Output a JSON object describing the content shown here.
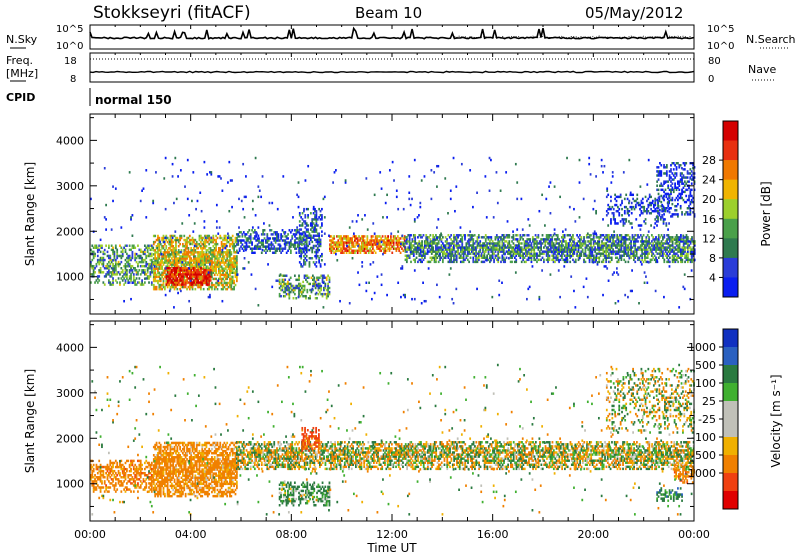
{
  "header": {
    "station": "Stokkseyri (fitACF)",
    "beam": "Beam 10",
    "date": "05/May/2012"
  },
  "top_panels": {
    "nsky_label": "N.Sky",
    "nsearch_label": "N.Search",
    "noise_ticks": [
      "10^5",
      "10^0"
    ],
    "freq_label": "Freq.",
    "freq_unit": "[MHz]",
    "freq_ticks": [
      "18",
      "8"
    ],
    "nave_label": "Nave",
    "nave_ticks": [
      "80",
      "0"
    ],
    "cpid_label": "CPID",
    "cpid_value": "normal 150"
  },
  "colors": {
    "power": [
      "#0a1ef0",
      "#2a3cd8",
      "#2f7a4f",
      "#4aa04a",
      "#9ccf2c",
      "#f0b400",
      "#f07800",
      "#e83010",
      "#d40000"
    ],
    "velocity": [
      "#e00000",
      "#f04010",
      "#f08000",
      "#f0b000",
      "#c0c0b8",
      "#c0c0b8",
      "#40b030",
      "#2a7a40",
      "#2a60c0",
      "#1030c0"
    ]
  },
  "chart_data": [
    {
      "type": "heatmap",
      "panel": "power",
      "ylabel": "Slant Range [km]",
      "x_ticks": [
        "00:00",
        "04:00",
        "08:00",
        "12:00",
        "16:00",
        "20:00",
        "00:00"
      ],
      "y_ticks": [
        1000,
        2000,
        3000,
        4000
      ],
      "ylim": [
        180,
        4580
      ],
      "xlim_hours": [
        0,
        24
      ],
      "colorbar_label": "Power [dB]",
      "colorbar_ticks": [
        4,
        8,
        12,
        16,
        20,
        24,
        28
      ],
      "regions": [
        {
          "t0": 0.0,
          "t1": 2.5,
          "r0": 800,
          "r1": 1700,
          "intensity": 0.35,
          "density": 0.55
        },
        {
          "t0": 2.5,
          "t1": 5.8,
          "r0": 700,
          "r1": 1900,
          "intensity": 0.55,
          "density": 0.85
        },
        {
          "t0": 3.0,
          "t1": 4.8,
          "r0": 800,
          "r1": 1200,
          "intensity": 0.9,
          "density": 0.9
        },
        {
          "t0": 5.8,
          "t1": 8.5,
          "r0": 1500,
          "r1": 2000,
          "intensity": 0.2,
          "density": 0.6
        },
        {
          "t0": 7.5,
          "t1": 9.5,
          "r0": 500,
          "r1": 1000,
          "intensity": 0.35,
          "density": 0.55
        },
        {
          "t0": 8.3,
          "t1": 9.2,
          "r0": 1200,
          "r1": 2500,
          "intensity": 0.2,
          "density": 0.5
        },
        {
          "t0": 9.5,
          "t1": 12.5,
          "r0": 1500,
          "r1": 1900,
          "intensity": 0.7,
          "density": 0.85
        },
        {
          "t0": 12.5,
          "t1": 24.0,
          "r0": 1300,
          "r1": 1900,
          "intensity": 0.3,
          "density": 0.8
        },
        {
          "t0": 20.5,
          "t1": 23.0,
          "r0": 2100,
          "r1": 2800,
          "intensity": 0.1,
          "density": 0.35
        },
        {
          "t0": 22.5,
          "t1": 24.0,
          "r0": 2300,
          "r1": 3500,
          "intensity": 0.1,
          "density": 0.4
        },
        {
          "t0": 0.0,
          "t1": 24.0,
          "r0": 300,
          "r1": 3600,
          "intensity": 0.1,
          "density": 0.02
        }
      ]
    },
    {
      "type": "heatmap",
      "panel": "velocity",
      "ylabel": "Slant Range [km]",
      "xlabel": "Time UT",
      "x_ticks": [
        "00:00",
        "04:00",
        "08:00",
        "12:00",
        "16:00",
        "20:00",
        "00:00"
      ],
      "y_ticks": [
        1000,
        2000,
        3000,
        4000
      ],
      "ylim": [
        180,
        4580
      ],
      "xlim_hours": [
        0,
        24
      ],
      "colorbar_label": "Velocity [m s⁻¹]",
      "colorbar_ticks": [
        "1000",
        "500",
        "100",
        "25",
        "-25",
        "-100",
        "-500",
        "-1000"
      ],
      "regions": [
        {
          "t0": 0.0,
          "t1": 2.5,
          "r0": 800,
          "r1": 1500,
          "vel": -300,
          "density": 0.55
        },
        {
          "t0": 2.5,
          "t1": 5.8,
          "r0": 700,
          "r1": 1900,
          "vel": -250,
          "density": 0.85
        },
        {
          "t0": 5.8,
          "t1": 24.0,
          "r0": 1300,
          "r1": 1900,
          "vel": 0,
          "density": 0.75
        },
        {
          "t0": 7.5,
          "t1": 9.5,
          "r0": 500,
          "r1": 1000,
          "vel": 200,
          "density": 0.55
        },
        {
          "t0": 8.4,
          "t1": 9.1,
          "r0": 1700,
          "r1": 2200,
          "vel": -600,
          "density": 0.6
        },
        {
          "t0": 20.5,
          "t1": 24.0,
          "r0": 2100,
          "r1": 3500,
          "vel": 0,
          "density": 0.3
        },
        {
          "t0": 22.5,
          "t1": 23.5,
          "r0": 600,
          "r1": 900,
          "vel": 300,
          "density": 0.6
        },
        {
          "t0": 23.2,
          "t1": 24.0,
          "r0": 1000,
          "r1": 1400,
          "vel": -300,
          "density": 0.6
        },
        {
          "t0": 0.0,
          "t1": 24.0,
          "r0": 300,
          "r1": 3600,
          "vel": 0,
          "density": 0.02
        }
      ]
    }
  ]
}
